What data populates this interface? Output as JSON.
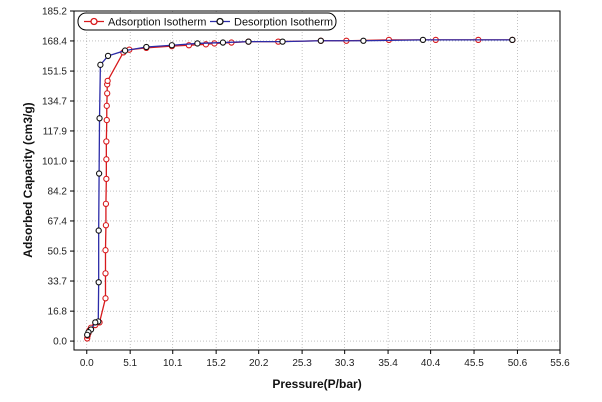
{
  "chart_data": {
    "type": "scatter",
    "xlabel": "Pressure(P/bar)",
    "ylabel": "Adsorbed Capacity (cm3/g)",
    "xlim": [
      -1.5,
      55.6
    ],
    "ylim": [
      -5,
      185.2
    ],
    "x_ticks": [
      "0.0",
      "5.1",
      "10.1",
      "15.2",
      "20.2",
      "25.3",
      "30.3",
      "35.4",
      "40.4",
      "45.5",
      "50.6",
      "55.6"
    ],
    "y_ticks": [
      "0.0",
      "16.8",
      "33.7",
      "50.5",
      "67.4",
      "84.2",
      "101.0",
      "117.9",
      "134.7",
      "151.5",
      "168.4",
      "185.2"
    ],
    "grid": "dotted",
    "legend": "top-left",
    "series": [
      {
        "name": "Adsorption Isotherm",
        "color": "#d7191c",
        "x": [
          0.05,
          0.1,
          0.2,
          0.3,
          0.5,
          1.0,
          1.5,
          2.2,
          2.2,
          2.2,
          2.25,
          2.25,
          2.3,
          2.3,
          2.3,
          2.35,
          2.35,
          2.4,
          2.4,
          2.45,
          4.3,
          5.0,
          7.0,
          10.0,
          12.0,
          14.0,
          15.0,
          17.0,
          19.0,
          22.5,
          27.5,
          30.5,
          35.5,
          41.0,
          46.0,
          50.0
        ],
        "y": [
          1.5,
          3.0,
          4.5,
          6.0,
          7.5,
          9.0,
          10.5,
          24.0,
          38.0,
          51.0,
          65.0,
          77.0,
          91.0,
          102.0,
          112.0,
          124.0,
          132.0,
          139.0,
          144.0,
          146.0,
          162.0,
          163.5,
          164.5,
          165.5,
          166.0,
          166.5,
          167.0,
          167.5,
          168.0,
          168.0,
          168.5,
          168.5,
          169.0,
          169.0,
          169.0,
          169.0
        ]
      },
      {
        "name": "Desorption Isotherm",
        "color": "#2c2ca8",
        "x": [
          50.0,
          39.5,
          32.5,
          27.5,
          23.0,
          19.0,
          16.0,
          13.0,
          10.0,
          7.0,
          4.5,
          2.5,
          1.6,
          1.5,
          1.45,
          1.4,
          1.4,
          1.35,
          1.0,
          0.5,
          0.2,
          0.05
        ],
        "y": [
          169.0,
          169.0,
          168.5,
          168.5,
          168.0,
          168.0,
          167.5,
          167.0,
          166.0,
          165.0,
          163.0,
          160.0,
          155.0,
          125.0,
          94.0,
          62.0,
          33.0,
          11.0,
          10.5,
          6.5,
          5.0,
          3.5
        ]
      }
    ]
  }
}
